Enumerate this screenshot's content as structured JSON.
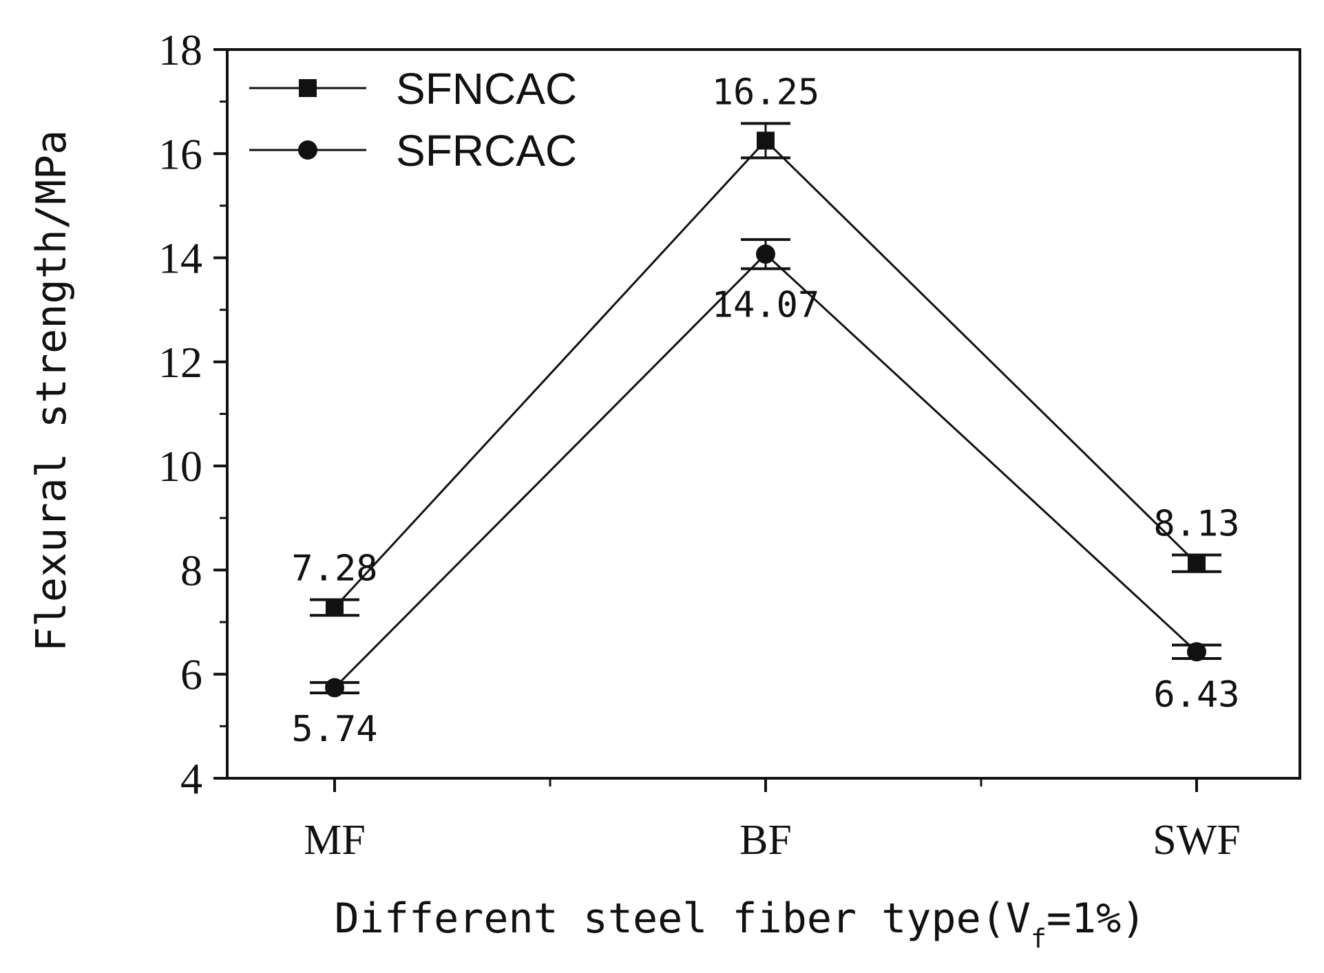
{
  "chart_data": {
    "type": "line",
    "title": "",
    "xlabel_parts": {
      "main": "Different steel fiber type(V",
      "subscript": "f",
      "tail": "=1%)"
    },
    "xlabel": "Different steel fiber type(Vf=1%)",
    "ylabel": "Flexural strength/MPa",
    "categories": [
      "MF",
      "BF",
      "SWF"
    ],
    "ylim": [
      4,
      18
    ],
    "yticks": [
      4,
      6,
      8,
      10,
      12,
      14,
      16,
      18
    ],
    "legend_position": "top-left",
    "series": [
      {
        "name": "SFNCAC",
        "marker": "square",
        "values": [
          7.28,
          16.25,
          8.13
        ],
        "errors": [
          0.15,
          0.33,
          0.16
        ],
        "labels": [
          "7.28",
          "16.25",
          "8.13"
        ],
        "label_side": [
          "above",
          "above",
          "above"
        ]
      },
      {
        "name": "SFRCAC",
        "marker": "circle",
        "values": [
          5.74,
          14.07,
          6.43
        ],
        "errors": [
          0.1,
          0.28,
          0.13
        ],
        "labels": [
          "5.74",
          "14.07",
          "6.43"
        ],
        "label_side": [
          "below",
          "below",
          "below"
        ]
      }
    ],
    "colors": {
      "line": "#111111",
      "marker": "#111111",
      "axis": "#111111"
    }
  }
}
